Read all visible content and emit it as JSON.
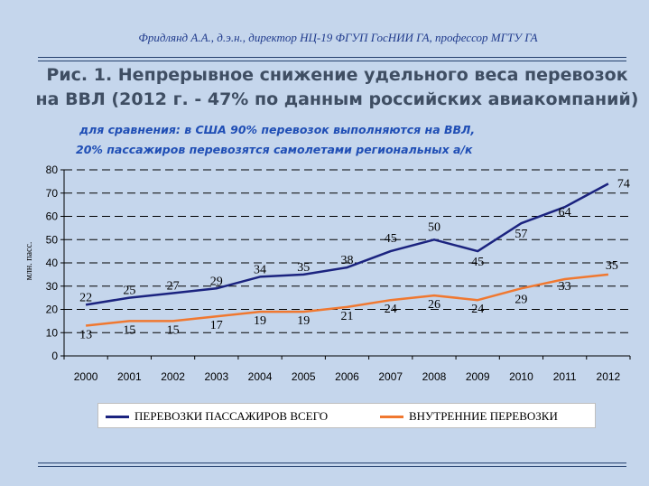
{
  "header": {
    "author": "Фридлянд А.А., д.э.н., директор НЦ-19 ФГУП ГосНИИ ГА, профессор МГТУ ГА",
    "title_line1": "Рис. 1. Непрерывное снижение удельного веса перевозок",
    "title_line2": "на ВВЛ (2012 г. - 47% по данным российских авиакомпаний)",
    "note_line1": "для сравнения: в США 90% перевозок выполняются на ВВЛ,",
    "note_line2": "20% пассажиров перевозятся самолетами региональных а/к"
  },
  "chart_data": {
    "type": "line",
    "title": "",
    "xlabel": "",
    "ylabel": "млн. пасс.",
    "ylim": [
      0,
      80
    ],
    "yticks": [
      "0",
      "10",
      "20",
      "30",
      "40",
      "50",
      "60",
      "70",
      "80"
    ],
    "grid": "horizontal dashed",
    "legend_position": "bottom",
    "categories": [
      "2000",
      "2001",
      "2002",
      "2003",
      "2004",
      "2005",
      "2006",
      "2007",
      "2008",
      "2009",
      "2010",
      "2011",
      "2012"
    ],
    "series": [
      {
        "name": "ПЕРЕВОЗКИ ПАССАЖИРОВ ВСЕГО",
        "color": "#1b237f",
        "values": [
          22,
          25,
          27,
          29,
          34,
          35,
          38,
          45,
          50,
          45,
          57,
          64,
          74
        ]
      },
      {
        "name": "ВНУТРЕННИЕ ПЕРЕВОЗКИ",
        "color": "#f07830",
        "values": [
          13,
          15,
          15,
          17,
          19,
          19,
          21,
          24,
          26,
          24,
          29,
          33,
          35
        ]
      }
    ]
  }
}
